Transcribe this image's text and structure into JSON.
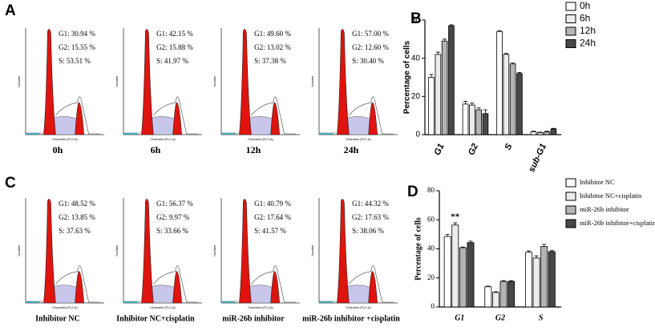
{
  "panels": [
    {
      "label": "A",
      "plots": [
        {
          "stats": [
            "G1: 30.94 %",
            "G2: 15.55 %",
            "S: 53.51 %"
          ],
          "caption": "0h"
        },
        {
          "stats": [
            "G1: 42.15 %",
            "G2: 15.88 %",
            "S: 41.97 %"
          ],
          "caption": "6h"
        },
        {
          "stats": [
            "G1: 49.60 %",
            "G2: 13.02 %",
            "S: 37.38 %"
          ],
          "caption": "12h"
        },
        {
          "stats": [
            "G1: 57.00 %",
            "G2: 12.60 %",
            "S: 30.40 %"
          ],
          "caption": "24h"
        }
      ]
    },
    {
      "label": "C",
      "plots": [
        {
          "stats": [
            "G1: 48.52 %",
            "G2: 13.85 %",
            "S: 37.63 %"
          ],
          "caption": "Inhibitor NC"
        },
        {
          "stats": [
            "G1: 56.37 %",
            "G2: 9.97 %",
            "S: 33.66 %"
          ],
          "caption": "Inhibitor NC+cisplatin"
        },
        {
          "stats": [
            "G1: 40.79 %",
            "G2: 17.64 %",
            "S: 41.57 %"
          ],
          "caption": "miR-26b inhibitor"
        },
        {
          "stats": [
            "G1: 44.32 %",
            "G2: 17.63 %",
            "S: 38.06 %"
          ],
          "caption": "miR-26b inhibitor +cisplatin"
        }
      ]
    }
  ],
  "axis_x_label": "Channels (FL2-A)",
  "axis_y_label": "Number",
  "chart_data": [
    {
      "type": "bar",
      "panel_label": "B",
      "ylabel": "Percentage of cells",
      "categories": [
        "G1",
        "G2",
        "S",
        "sub-G1"
      ],
      "series": [
        {
          "name": "0h",
          "color": "#ffffff",
          "values": [
            30,
            16,
            54,
            1.5
          ],
          "errors": [
            1.5,
            1.5,
            0.5,
            0.3
          ]
        },
        {
          "name": "6h",
          "color": "#ececec",
          "values": [
            42,
            15.5,
            42,
            1
          ],
          "errors": [
            1.2,
            1,
            0.5,
            0.3
          ]
        },
        {
          "name": "12h",
          "color": "#b4b4b4",
          "values": [
            49,
            13,
            37,
            1.5
          ],
          "errors": [
            1,
            1,
            0.5,
            0.3
          ]
        },
        {
          "name": "24h",
          "color": "#474747",
          "values": [
            57,
            11,
            32,
            3
          ],
          "errors": [
            0.5,
            2,
            0.5,
            0.3
          ]
        }
      ],
      "ylim": [
        0,
        60
      ],
      "yticks": [
        0,
        20,
        40,
        60
      ]
    },
    {
      "type": "bar",
      "panel_label": "D",
      "ylabel": "Percentage of cells",
      "annotation": "**",
      "categories": [
        "G1",
        "G2",
        "S"
      ],
      "series": [
        {
          "name": "Inhibitor NC",
          "color": "#ffffff",
          "values": [
            48.5,
            13.9,
            37.6
          ],
          "errors": [
            1.5,
            0.5,
            1
          ]
        },
        {
          "name": "Inhibitor NC+cisplatin",
          "color": "#ececec",
          "values": [
            56.4,
            10,
            33.7
          ],
          "errors": [
            1.5,
            0.5,
            1.5
          ]
        },
        {
          "name": "miR-26b inhibitor",
          "color": "#b4b4b4",
          "values": [
            40.8,
            17.6,
            41.6
          ],
          "errors": [
            0.5,
            0.5,
            1.5
          ]
        },
        {
          "name": "miR-26b inhibitor+cisplatin",
          "color": "#474747",
          "values": [
            44.3,
            17.6,
            38.1
          ],
          "errors": [
            1,
            0.5,
            0.8
          ]
        }
      ],
      "ylim": [
        0,
        80
      ],
      "yticks": [
        0,
        20,
        40,
        60,
        80
      ]
    }
  ]
}
